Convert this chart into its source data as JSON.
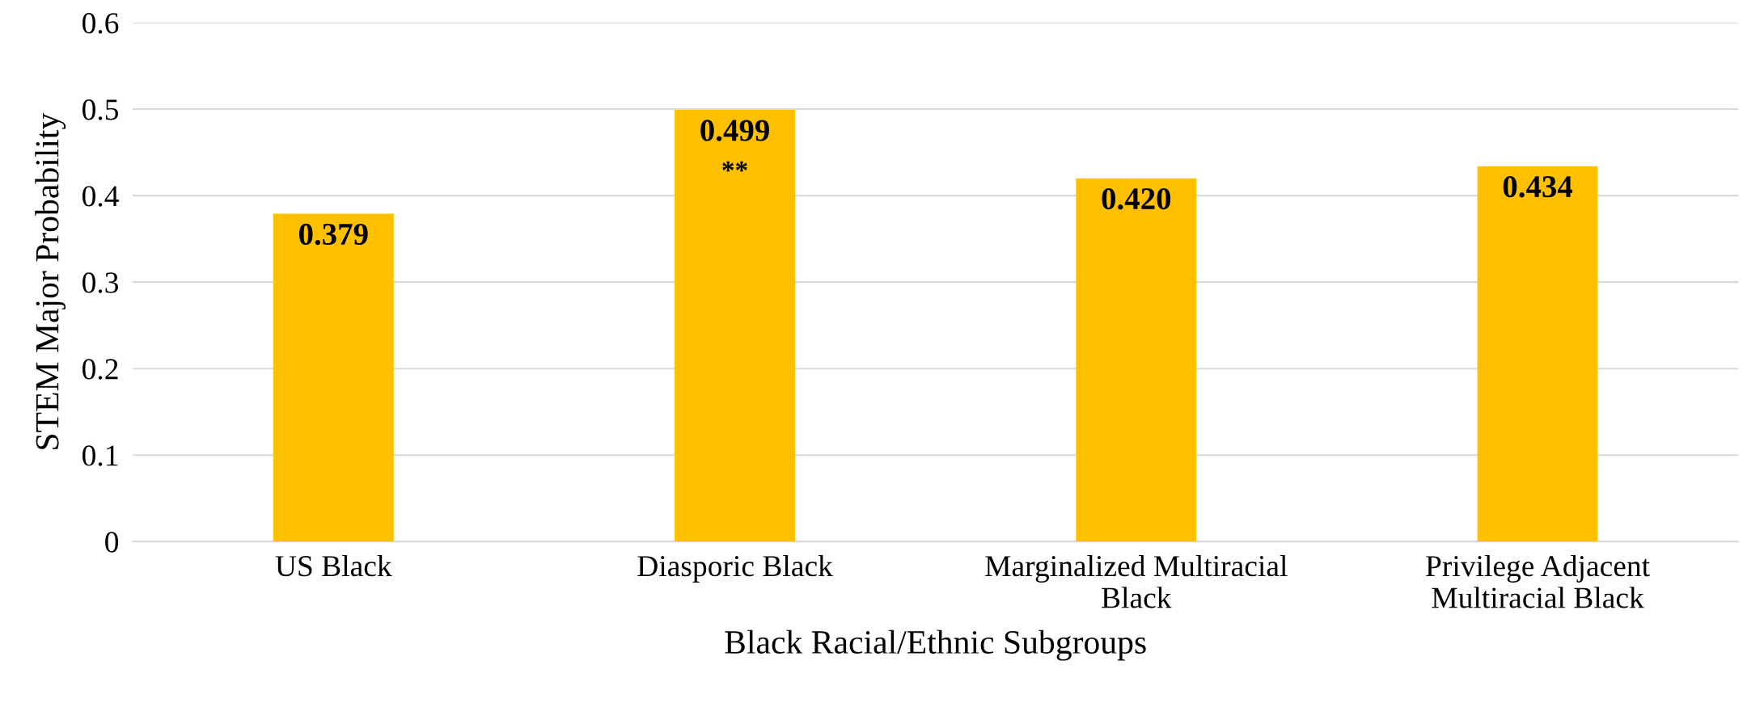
{
  "chart_data": {
    "type": "bar",
    "xlabel": "Black Racial/Ethnic Subgroups",
    "ylabel": "STEM Major Probability",
    "categories": [
      "US Black",
      "Diasporic Black",
      "Marginalized Multiracial\nBlack",
      "Privilege Adjacent\nMultiracial Black"
    ],
    "values": [
      0.379,
      0.499,
      0.42,
      0.434
    ],
    "value_labels": [
      "0.379",
      "0.499",
      "0.420",
      "0.434"
    ],
    "color": "#ffc000",
    "ylim": [
      0,
      0.6
    ],
    "yticks": [
      0,
      0.1,
      0.2,
      0.3,
      0.4,
      0.5,
      0.6
    ],
    "grid": "y",
    "annotations": [
      {
        "text": "**",
        "x": "Diasporic Black",
        "y": 0.499
      }
    ]
  }
}
